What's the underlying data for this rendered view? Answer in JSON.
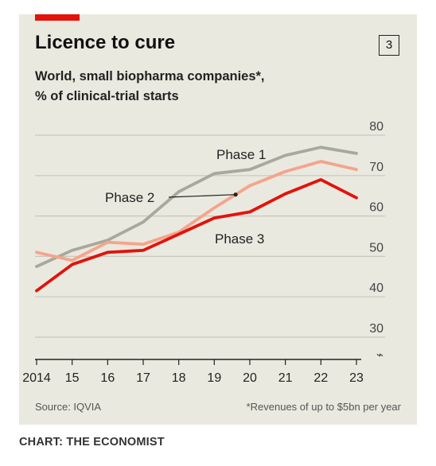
{
  "chart_number": "3",
  "credit": "CHART: THE ECONOMIST",
  "source": "Source: IQVIA",
  "footnote": "*Revenues of up to $5bn per year",
  "colors": {
    "accent": "#e3120b",
    "background": "#e9e9df",
    "phase1": "#a8a89c",
    "phase2": "#f5a48c",
    "phase3": "#e3120b",
    "grid": "#c7c7bd"
  },
  "chart_data": {
    "type": "line",
    "title": "Licence to cure",
    "subtitle": [
      "World, small biopharma companies*,",
      "% of clinical-trial starts"
    ],
    "x": [
      "2014",
      "15",
      "16",
      "17",
      "18",
      "19",
      "20",
      "21",
      "22",
      "23"
    ],
    "ylim": [
      25,
      80
    ],
    "yticks": [
      "30",
      "40",
      "50",
      "60",
      "70",
      "80"
    ],
    "broken_axis_symbol": "⌁",
    "grid": true,
    "series": [
      {
        "name": "Phase 1",
        "values": [
          47.5,
          51.5,
          54,
          58.5,
          66,
          70.5,
          71.5,
          75,
          77,
          75.5
        ]
      },
      {
        "name": "Phase 2",
        "values": [
          51,
          49,
          53.5,
          53,
          56,
          62,
          67.5,
          71,
          73.5,
          71.5
        ]
      },
      {
        "name": "Phase 3",
        "values": [
          41.5,
          48,
          51,
          51.5,
          55.5,
          59.5,
          61,
          65.5,
          69,
          64.5
        ]
      }
    ]
  }
}
